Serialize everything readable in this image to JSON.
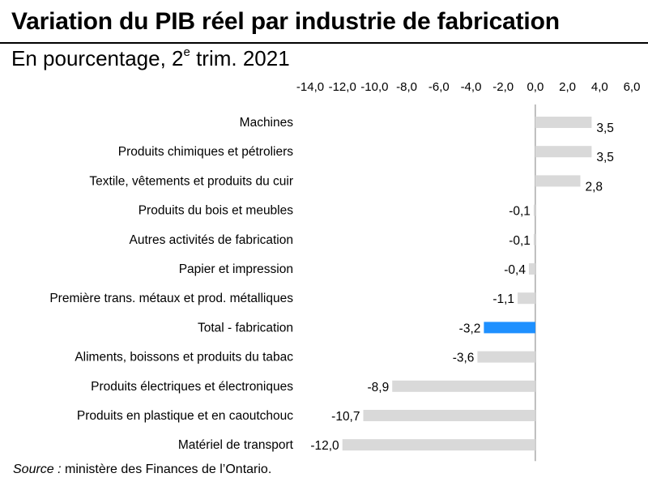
{
  "title": "Variation du PIB réel par industrie de fabrication",
  "subtitle_main": "En pourcentage, 2",
  "subtitle_sup": "e",
  "subtitle_rest": " trim. 2021",
  "source_label": "Source :",
  "source_text": " ministère des Finances de l’Ontario.",
  "colors": {
    "bar": "#d9d9d9",
    "highlight": "#1e90ff",
    "axis": "#7f7f7f"
  },
  "chart_data": {
    "type": "bar",
    "orientation": "horizontal",
    "title": "Variation du PIB réel par industrie de fabrication",
    "xlabel": "",
    "ylabel": "",
    "xlim": [
      -14,
      6
    ],
    "ticks": [
      -14,
      -12,
      -10,
      -8,
      -6,
      -4,
      -2,
      0,
      2,
      4,
      6
    ],
    "tick_labels": [
      "-14,0",
      "-12,0",
      "-10,0",
      "-8,0",
      "-6,0",
      "-4,0",
      "-2,0",
      "0,0",
      "2,0",
      "4,0",
      "6,0"
    ],
    "axis_position": "top",
    "grid": false,
    "categories": [
      "Machines",
      "Produits chimiques et pétroliers",
      "Textile, vêtements et produits du cuir",
      "Produits du bois et meubles",
      "Autres activités de fabrication",
      "Papier et impression",
      "Première trans. métaux et prod. métalliques",
      "Total - fabrication",
      "Aliments, boissons et produits du tabac",
      "Produits électriques et électroniques",
      "Produits en plastique et en caoutchouc",
      "Matériel de transport"
    ],
    "values": [
      3.5,
      3.5,
      2.8,
      -0.1,
      -0.1,
      -0.4,
      -1.1,
      -3.2,
      -3.6,
      -8.9,
      -10.7,
      -12.0
    ],
    "value_labels": [
      "3,5",
      "3,5",
      "2,8",
      "-0,1",
      "-0,1",
      "-0,4",
      "-1,1",
      "-3,2",
      "-3,6",
      "-8,9",
      "-10,7",
      "-12,0"
    ],
    "highlight_category": "Total - fabrication"
  }
}
